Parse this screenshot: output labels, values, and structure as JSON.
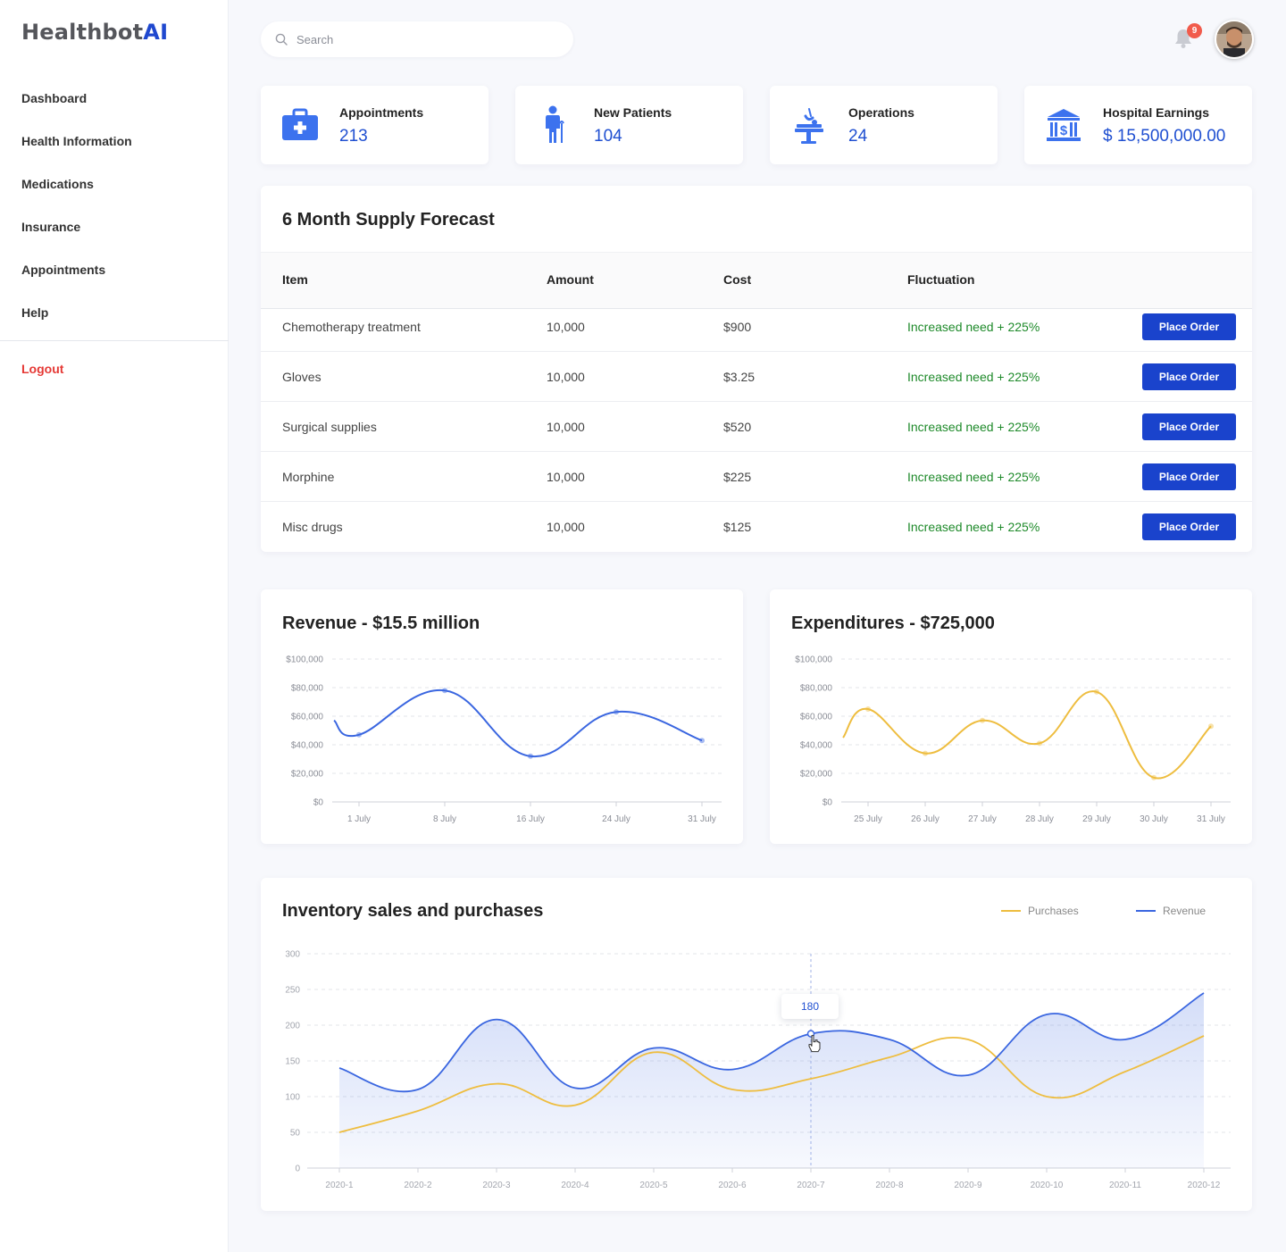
{
  "brand": {
    "name": "Healthbot",
    "suffix": "AI"
  },
  "sidebar": {
    "items": [
      {
        "label": "Dashboard"
      },
      {
        "label": "Health Information"
      },
      {
        "label": "Medications"
      },
      {
        "label": "Insurance"
      },
      {
        "label": "Appointments"
      },
      {
        "label": "Help"
      }
    ],
    "logout": "Logout"
  },
  "header": {
    "search_placeholder": "Search",
    "notification_count": "9",
    "icons": {
      "search": "search-icon",
      "bell": "bell-icon",
      "avatar": "avatar"
    }
  },
  "stats": [
    {
      "label": "Appointments",
      "value": "213",
      "icon": "first-aid-kit-icon"
    },
    {
      "label": "New Patients",
      "value": "104",
      "icon": "patient-icon"
    },
    {
      "label": "Operations",
      "value": "24",
      "icon": "operating-table-icon"
    },
    {
      "label": "Hospital Earnings",
      "value": "$ 15,500,000.00",
      "icon": "bank-icon"
    }
  ],
  "supply": {
    "title": "6 Month Supply Forecast",
    "columns": [
      "Item",
      "Amount",
      "Cost",
      "Fluctuation"
    ],
    "button_label": "Place Order",
    "rows": [
      {
        "item": "Chemotherapy treatment",
        "amount": "10,000",
        "cost": "$900",
        "fluctuation": "Increased need + 225%"
      },
      {
        "item": "Gloves",
        "amount": "10,000",
        "cost": "$3.25",
        "fluctuation": "Increased need + 225%"
      },
      {
        "item": "Surgical supplies",
        "amount": "10,000",
        "cost": "$520",
        "fluctuation": "Increased need + 225%"
      },
      {
        "item": "Morphine",
        "amount": "10,000",
        "cost": "$225",
        "fluctuation": "Increased need + 225%"
      },
      {
        "item": "Misc drugs",
        "amount": "10,000",
        "cost": "$125",
        "fluctuation": "Increased need + 225%"
      }
    ]
  },
  "colors": {
    "accent": "#1f4fd1",
    "button": "#1a43cc",
    "revenue_line": "#3a66e0",
    "purchases_line": "#eebd3f",
    "positive": "#1e8a2a",
    "logout": "#e53935"
  },
  "tooltip": {
    "value": "180"
  },
  "chart_data": [
    {
      "type": "line",
      "title": "Revenue - $15.5 million",
      "categories": [
        "1 July",
        "8 July",
        "16 July",
        "24 July",
        "31 July"
      ],
      "y_ticks": [
        "$0",
        "$20,000",
        "$40,000",
        "$60,000",
        "$80,000",
        "$100,000"
      ],
      "ylim": [
        0,
        100000
      ],
      "series": [
        {
          "values": [
            47000,
            78000,
            32000,
            63000,
            43000
          ]
        }
      ],
      "grid": true
    },
    {
      "type": "line",
      "title": "Expenditures - $725,000",
      "categories": [
        "25 July",
        "26 July",
        "27 July",
        "28 July",
        "29 July",
        "30 July",
        "31 July"
      ],
      "y_ticks": [
        "$0",
        "$20,000",
        "$40,000",
        "$60,000",
        "$80,000",
        "$100,000"
      ],
      "ylim": [
        0,
        100000
      ],
      "series": [
        {
          "values": [
            65000,
            34000,
            57000,
            41000,
            77000,
            17000,
            53000
          ]
        }
      ],
      "grid": true
    },
    {
      "type": "area",
      "title": "Inventory sales and purchases",
      "categories": [
        "2020-1",
        "2020-2",
        "2020-3",
        "2020-4",
        "2020-5",
        "2020-6",
        "2020-7",
        "2020-8",
        "2020-9",
        "2020-10",
        "2020-11",
        "2020-12"
      ],
      "y_ticks": [
        "0",
        "50",
        "100",
        "150",
        "200",
        "250",
        "300"
      ],
      "ylim": [
        0,
        300
      ],
      "legend": "top-right",
      "series": [
        {
          "name": "Purchases",
          "values": [
            50,
            80,
            118,
            88,
            162,
            110,
            125,
            155,
            180,
            100,
            135,
            185
          ]
        },
        {
          "name": "Revenue",
          "values": [
            140,
            110,
            208,
            112,
            168,
            138,
            188,
            180,
            130,
            215,
            180,
            245
          ]
        }
      ],
      "grid": true
    }
  ]
}
